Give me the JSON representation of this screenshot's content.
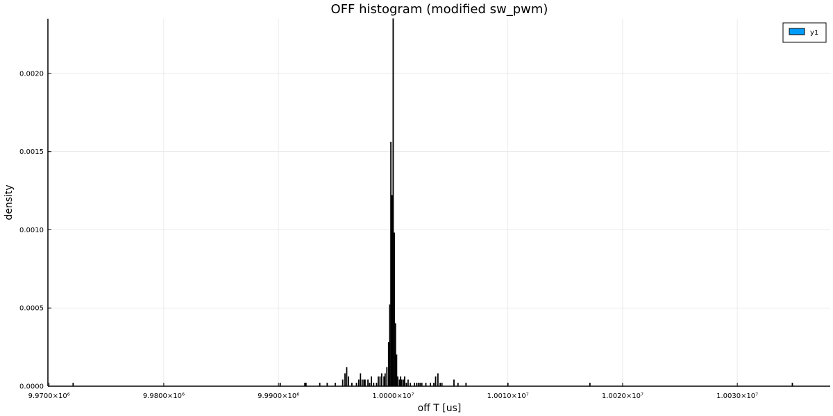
{
  "chart_data": {
    "type": "bar",
    "title": "OFF histogram (modified sw_pwm)",
    "xlabel": "off T [us]",
    "ylabel": "density",
    "xlim": [
      9969900,
      10038100
    ],
    "ylim": [
      0,
      0.00235
    ],
    "grid": true,
    "bin_width": 50,
    "x_ticks": [
      {
        "value": 9970000,
        "label": "9.9700×10⁶"
      },
      {
        "value": 9980000,
        "label": "9.9800×10⁶"
      },
      {
        "value": 9990000,
        "label": "9.9900×10⁶"
      },
      {
        "value": 10000000,
        "label": "1.0000×10⁷"
      },
      {
        "value": 10010000,
        "label": "1.0010×10⁷"
      },
      {
        "value": 10020000,
        "label": "1.0020×10⁷"
      },
      {
        "value": 10030000,
        "label": "1.0030×10⁷"
      }
    ],
    "y_ticks": [
      {
        "value": 0,
        "label": "0.0000"
      },
      {
        "value": 0.0005,
        "label": "0.0005"
      },
      {
        "value": 0.001,
        "label": "0.0010"
      },
      {
        "value": 0.0015,
        "label": "0.0015"
      },
      {
        "value": 0.002,
        "label": "0.0020"
      }
    ],
    "legend": {
      "position": "top-right",
      "entries": [
        {
          "name": "y1",
          "color": "#009af9"
        }
      ]
    },
    "series": [
      {
        "name": "y1",
        "color": "#009af9",
        "bins": [
          [
            9972100,
            2e-05
          ],
          [
            9990150,
            2e-05
          ],
          [
            9992300,
            2e-05
          ],
          [
            9992400,
            2e-05
          ],
          [
            9993600,
            2e-05
          ],
          [
            9994250,
            2e-05
          ],
          [
            9994950,
            2e-05
          ],
          [
            9995600,
            4e-05
          ],
          [
            9995800,
            8e-05
          ],
          [
            9995950,
            0.00012
          ],
          [
            9996100,
            6e-05
          ],
          [
            9996400,
            2e-05
          ],
          [
            9996800,
            2e-05
          ],
          [
            9997000,
            4e-05
          ],
          [
            9997150,
            8e-05
          ],
          [
            9997300,
            4e-05
          ],
          [
            9997450,
            4e-05
          ],
          [
            9997550,
            4e-05
          ],
          [
            9997800,
            4e-05
          ],
          [
            9997950,
            2e-05
          ],
          [
            9998100,
            6e-05
          ],
          [
            9998300,
            2e-05
          ],
          [
            9998550,
            2e-05
          ],
          [
            9998700,
            6e-05
          ],
          [
            9998850,
            6e-05
          ],
          [
            9999000,
            8e-05
          ],
          [
            9999200,
            6e-05
          ],
          [
            9999300,
            8e-05
          ],
          [
            9999450,
            0.00012
          ],
          [
            9999600,
            0.00028
          ],
          [
            9999700,
            0.00052
          ],
          [
            9999800,
            0.00156
          ],
          [
            9999900,
            0.00122
          ],
          [
            10000000,
            0.00235
          ],
          [
            10000100,
            0.00098
          ],
          [
            10000200,
            0.0004
          ],
          [
            10000300,
            0.0002
          ],
          [
            10000400,
            6e-05
          ],
          [
            10000550,
            4e-05
          ],
          [
            10000650,
            6e-05
          ],
          [
            10000750,
            4e-05
          ],
          [
            10000900,
            4e-05
          ],
          [
            10001000,
            6e-05
          ],
          [
            10001150,
            2e-05
          ],
          [
            10001300,
            4e-05
          ],
          [
            10001500,
            2e-05
          ],
          [
            10001850,
            2e-05
          ],
          [
            10002050,
            2e-05
          ],
          [
            10002200,
            2e-05
          ],
          [
            10002350,
            2e-05
          ],
          [
            10002500,
            2e-05
          ],
          [
            10002850,
            2e-05
          ],
          [
            10003250,
            2e-05
          ],
          [
            10003550,
            2e-05
          ],
          [
            10003700,
            6e-05
          ],
          [
            10003900,
            8e-05
          ],
          [
            10004100,
            2e-05
          ],
          [
            10004250,
            2e-05
          ],
          [
            10005300,
            4e-05
          ],
          [
            10005650,
            2e-05
          ],
          [
            10006350,
            2e-05
          ],
          [
            10010000,
            2e-05
          ],
          [
            10017150,
            2e-05
          ],
          [
            10034800,
            2e-05
          ]
        ]
      }
    ]
  }
}
